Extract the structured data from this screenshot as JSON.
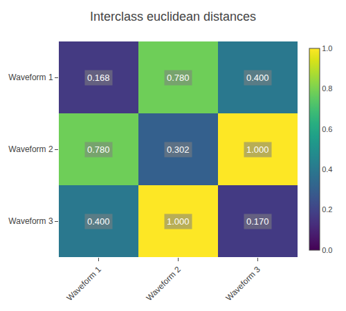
{
  "chart_data": {
    "type": "heatmap",
    "title": "Interclass euclidean distances",
    "x": [
      "Waveform 1",
      "Waveform 2",
      "Waveform 3"
    ],
    "y": [
      "Waveform 1",
      "Waveform 2",
      "Waveform 3"
    ],
    "values": [
      [
        0.168,
        0.78,
        0.4
      ],
      [
        0.78,
        0.302,
        1.0
      ],
      [
        0.4,
        1.0,
        0.17
      ]
    ],
    "value_labels": [
      [
        "0.168",
        "0.780",
        "0.400"
      ],
      [
        "0.780",
        "0.302",
        "1.000"
      ],
      [
        "0.400",
        "1.000",
        "0.170"
      ]
    ],
    "data_labels": true,
    "color": "Viridis",
    "colorbar_range": [
      0.0,
      1.0
    ],
    "colorbar_ticks": [
      {
        "value": 0.0,
        "label": "0.0"
      },
      {
        "value": 0.2,
        "label": "0.2"
      },
      {
        "value": 0.4,
        "label": "0.4"
      },
      {
        "value": 0.6,
        "label": "0.6"
      },
      {
        "value": 0.8,
        "label": "0.8"
      },
      {
        "value": 1.0,
        "label": "1.0"
      }
    ]
  }
}
